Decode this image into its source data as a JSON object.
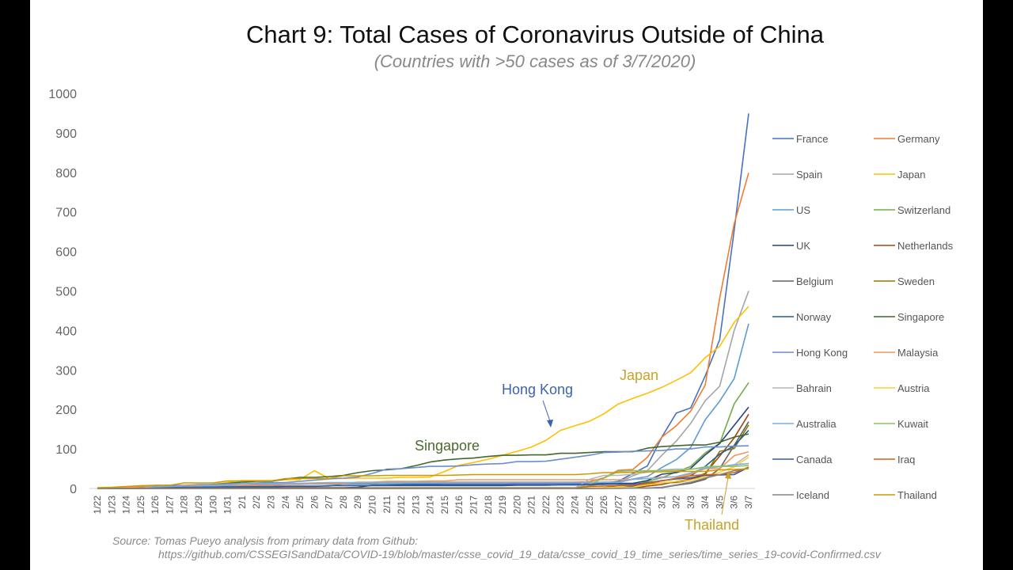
{
  "title": "Chart 9: Total Cases of Coronavirus Outside of China",
  "subtitle": "(Countries with >50 cases as of 3/7/2020)",
  "source_line1": "Source: Tomas Pueyo analysis from primary data from Github:",
  "source_line2": "https://github.com/CSSEGISandData/COVID-19/blob/master/csse_covid_19_data/csse_covid_19_time_series/time_series_19-covid-Confirmed.csv",
  "annotations": [
    {
      "text": "Hong Kong",
      "color": "#3E63AE",
      "arrow": true
    },
    {
      "text": "Japan",
      "color": "#C9A227",
      "arrow": false
    },
    {
      "text": "Singapore",
      "color": "#4A6B2E",
      "arrow": false
    },
    {
      "text": "Thailand",
      "color": "#C9A227",
      "arrow": true
    }
  ],
  "chart_data": {
    "type": "line",
    "title": "Chart 9: Total Cases of Coronavirus Outside of China",
    "subtitle": "(Countries with >50 cases as of 3/7/2020)",
    "xlabel": "",
    "ylabel": "",
    "ylim": [
      0,
      1000
    ],
    "yticks": [
      0,
      100,
      200,
      300,
      400,
      500,
      600,
      700,
      800,
      900,
      1000
    ],
    "grid": false,
    "legend": "right",
    "x": [
      "1/22",
      "1/23",
      "1/24",
      "1/25",
      "1/26",
      "1/27",
      "1/28",
      "1/29",
      "1/30",
      "1/31",
      "2/1",
      "2/2",
      "2/3",
      "2/4",
      "2/5",
      "2/6",
      "2/7",
      "2/8",
      "2/9",
      "2/10",
      "2/11",
      "2/12",
      "2/13",
      "2/14",
      "2/15",
      "2/16",
      "2/17",
      "2/18",
      "2/19",
      "2/20",
      "2/21",
      "2/22",
      "2/23",
      "2/24",
      "2/25",
      "2/26",
      "2/27",
      "2/28",
      "2/29",
      "3/1",
      "3/2",
      "3/3",
      "3/4",
      "3/5",
      "3/6",
      "3/7"
    ],
    "series": [
      {
        "name": "France",
        "color": "#4472C4",
        "values": [
          0,
          0,
          2,
          3,
          3,
          3,
          4,
          5,
          5,
          5,
          6,
          6,
          6,
          6,
          6,
          6,
          6,
          11,
          11,
          11,
          11,
          11,
          11,
          11,
          12,
          12,
          12,
          12,
          12,
          12,
          12,
          12,
          12,
          12,
          12,
          14,
          18,
          38,
          57,
          130,
          191,
          204,
          285,
          377,
          653,
          949
        ]
      },
      {
        "name": "Germany",
        "color": "#ED7D31",
        "values": [
          0,
          0,
          0,
          0,
          0,
          0,
          4,
          4,
          4,
          5,
          8,
          10,
          12,
          12,
          12,
          12,
          13,
          13,
          14,
          14,
          16,
          16,
          16,
          16,
          16,
          16,
          16,
          16,
          16,
          16,
          16,
          16,
          16,
          16,
          17,
          27,
          46,
          48,
          79,
          130,
          159,
          196,
          262,
          482,
          670,
          799
        ]
      },
      {
        "name": "Spain",
        "color": "#A5A5A5",
        "values": [
          0,
          0,
          0,
          0,
          0,
          0,
          0,
          0,
          0,
          0,
          1,
          1,
          1,
          1,
          1,
          1,
          1,
          1,
          2,
          2,
          2,
          2,
          2,
          2,
          2,
          2,
          2,
          2,
          2,
          2,
          2,
          2,
          2,
          2,
          6,
          13,
          15,
          32,
          45,
          84,
          120,
          165,
          222,
          259,
          400,
          500
        ]
      },
      {
        "name": "Japan",
        "color": "#FFC000",
        "values": [
          2,
          1,
          2,
          2,
          4,
          4,
          7,
          7,
          11,
          15,
          20,
          20,
          20,
          22,
          22,
          45,
          25,
          25,
          26,
          26,
          26,
          28,
          28,
          29,
          43,
          59,
          66,
          74,
          84,
          94,
          105,
          122,
          147,
          159,
          170,
          189,
          214,
          228,
          241,
          256,
          274,
          293,
          331,
          360,
          420,
          461
        ]
      },
      {
        "name": "US",
        "color": "#5B9BD5",
        "values": [
          1,
          1,
          2,
          2,
          5,
          5,
          5,
          5,
          5,
          6,
          8,
          8,
          11,
          11,
          11,
          11,
          11,
          11,
          11,
          11,
          12,
          12,
          13,
          13,
          13,
          13,
          13,
          13,
          13,
          15,
          15,
          15,
          15,
          15,
          15,
          16,
          16,
          24,
          30,
          53,
          73,
          104,
          174,
          221,
          278,
          417
        ]
      },
      {
        "name": "Switzerland",
        "color": "#70AD47",
        "values": [
          0,
          0,
          0,
          0,
          0,
          0,
          0,
          0,
          0,
          0,
          0,
          0,
          0,
          0,
          0,
          0,
          0,
          0,
          0,
          0,
          0,
          0,
          0,
          0,
          0,
          0,
          0,
          0,
          0,
          0,
          0,
          0,
          0,
          0,
          1,
          1,
          8,
          8,
          18,
          27,
          42,
          56,
          90,
          114,
          214,
          268
        ]
      },
      {
        "name": "UK",
        "color": "#264478",
        "values": [
          0,
          0,
          0,
          0,
          0,
          0,
          0,
          0,
          0,
          2,
          2,
          2,
          2,
          2,
          2,
          2,
          2,
          2,
          3,
          8,
          8,
          9,
          9,
          9,
          9,
          9,
          9,
          9,
          9,
          9,
          9,
          9,
          9,
          9,
          9,
          13,
          13,
          13,
          20,
          36,
          40,
          51,
          85,
          114,
          160,
          206
        ]
      },
      {
        "name": "Netherlands",
        "color": "#9E480E",
        "values": [
          0,
          0,
          0,
          0,
          0,
          0,
          0,
          0,
          0,
          0,
          0,
          0,
          0,
          0,
          0,
          0,
          0,
          0,
          0,
          0,
          0,
          0,
          0,
          0,
          0,
          0,
          0,
          0,
          0,
          0,
          0,
          0,
          0,
          0,
          0,
          0,
          1,
          1,
          6,
          10,
          18,
          24,
          38,
          82,
          128,
          188
        ]
      },
      {
        "name": "Belgium",
        "color": "#636363",
        "values": [
          0,
          0,
          0,
          0,
          0,
          0,
          0,
          0,
          0,
          0,
          0,
          0,
          0,
          1,
          1,
          1,
          1,
          1,
          1,
          1,
          1,
          1,
          1,
          1,
          1,
          1,
          1,
          1,
          1,
          1,
          1,
          1,
          1,
          1,
          1,
          1,
          1,
          1,
          1,
          2,
          8,
          13,
          23,
          50,
          109,
          169
        ]
      },
      {
        "name": "Sweden",
        "color": "#997300",
        "values": [
          0,
          0,
          0,
          0,
          0,
          0,
          0,
          0,
          0,
          1,
          1,
          1,
          1,
          1,
          1,
          1,
          1,
          1,
          1,
          1,
          1,
          1,
          1,
          1,
          1,
          1,
          1,
          1,
          1,
          1,
          1,
          1,
          1,
          1,
          1,
          2,
          7,
          7,
          12,
          14,
          15,
          21,
          35,
          94,
          101,
          161
        ]
      },
      {
        "name": "Norway",
        "color": "#255E91",
        "values": [
          0,
          0,
          0,
          0,
          0,
          0,
          0,
          0,
          0,
          0,
          0,
          0,
          0,
          0,
          0,
          0,
          0,
          0,
          0,
          0,
          0,
          0,
          0,
          0,
          0,
          0,
          0,
          0,
          0,
          0,
          0,
          0,
          0,
          0,
          0,
          1,
          1,
          6,
          15,
          19,
          25,
          32,
          56,
          87,
          108,
          147
        ]
      },
      {
        "name": "Singapore",
        "color": "#43682B",
        "values": [
          1,
          1,
          3,
          3,
          4,
          5,
          7,
          7,
          10,
          13,
          16,
          18,
          18,
          24,
          28,
          28,
          30,
          33,
          40,
          45,
          47,
          50,
          58,
          67,
          72,
          75,
          77,
          81,
          84,
          84,
          85,
          85,
          89,
          89,
          91,
          93,
          93,
          93,
          102,
          106,
          108,
          110,
          110,
          117,
          130,
          138
        ]
      },
      {
        "name": "Hong Kong",
        "color": "#698ED0",
        "values": [
          0,
          2,
          2,
          5,
          8,
          8,
          8,
          10,
          10,
          12,
          13,
          14,
          15,
          15,
          18,
          21,
          24,
          26,
          29,
          38,
          49,
          50,
          53,
          56,
          56,
          57,
          60,
          62,
          63,
          68,
          68,
          69,
          74,
          79,
          84,
          91,
          92,
          94,
          95,
          96,
          100,
          100,
          105,
          105,
          107,
          108
        ]
      },
      {
        "name": "Malaysia",
        "color": "#F1975A",
        "values": [
          0,
          0,
          3,
          4,
          4,
          4,
          7,
          8,
          8,
          8,
          8,
          8,
          8,
          10,
          10,
          12,
          12,
          12,
          16,
          16,
          18,
          18,
          18,
          19,
          19,
          22,
          22,
          22,
          22,
          22,
          22,
          22,
          22,
          22,
          22,
          22,
          22,
          23,
          25,
          29,
          29,
          36,
          50,
          50,
          83,
          93
        ]
      },
      {
        "name": "Bahrain",
        "color": "#B7B7B7",
        "values": [
          0,
          0,
          0,
          0,
          0,
          0,
          0,
          0,
          0,
          0,
          0,
          0,
          0,
          0,
          0,
          0,
          0,
          0,
          0,
          0,
          0,
          0,
          0,
          0,
          0,
          0,
          0,
          0,
          0,
          0,
          0,
          0,
          0,
          1,
          23,
          33,
          33,
          36,
          41,
          47,
          49,
          49,
          52,
          55,
          60,
          85
        ]
      },
      {
        "name": "Austria",
        "color": "#FFCD33",
        "values": [
          0,
          0,
          0,
          0,
          0,
          0,
          0,
          0,
          0,
          0,
          0,
          0,
          0,
          0,
          0,
          0,
          0,
          0,
          0,
          0,
          0,
          0,
          0,
          0,
          0,
          0,
          0,
          0,
          0,
          0,
          0,
          0,
          0,
          0,
          2,
          2,
          3,
          3,
          9,
          14,
          18,
          21,
          29,
          41,
          55,
          79
        ]
      },
      {
        "name": "Australia",
        "color": "#7CAFDD",
        "values": [
          0,
          0,
          0,
          0,
          4,
          5,
          5,
          6,
          9,
          9,
          12,
          12,
          12,
          13,
          13,
          14,
          15,
          15,
          15,
          15,
          15,
          15,
          15,
          15,
          15,
          15,
          15,
          15,
          15,
          15,
          15,
          15,
          15,
          15,
          15,
          15,
          15,
          23,
          25,
          27,
          30,
          39,
          52,
          55,
          60,
          63
        ]
      },
      {
        "name": "Kuwait",
        "color": "#8CC168",
        "values": [
          0,
          0,
          0,
          0,
          0,
          0,
          0,
          0,
          0,
          0,
          0,
          0,
          0,
          0,
          0,
          0,
          0,
          0,
          0,
          0,
          0,
          0,
          0,
          0,
          0,
          0,
          0,
          0,
          0,
          0,
          0,
          0,
          0,
          1,
          11,
          26,
          43,
          45,
          45,
          45,
          46,
          48,
          55,
          56,
          56,
          58
        ]
      },
      {
        "name": "Canada",
        "color": "#335AA1",
        "values": [
          0,
          0,
          0,
          0,
          1,
          2,
          3,
          3,
          3,
          4,
          4,
          4,
          4,
          5,
          5,
          5,
          7,
          7,
          7,
          7,
          7,
          7,
          7,
          7,
          7,
          7,
          7,
          7,
          7,
          8,
          8,
          8,
          9,
          9,
          10,
          10,
          11,
          11,
          14,
          20,
          24,
          27,
          33,
          34,
          35,
          54
        ]
      },
      {
        "name": "Iraq",
        "color": "#D26012",
        "values": [
          0,
          0,
          0,
          0,
          0,
          0,
          0,
          0,
          0,
          0,
          0,
          0,
          0,
          0,
          0,
          0,
          0,
          0,
          0,
          0,
          0,
          0,
          0,
          0,
          0,
          0,
          0,
          0,
          0,
          0,
          0,
          0,
          0,
          1,
          5,
          6,
          7,
          8,
          13,
          19,
          26,
          32,
          35,
          35,
          40,
          54
        ]
      },
      {
        "name": "Iceland",
        "color": "#848484",
        "values": [
          0,
          0,
          0,
          0,
          0,
          0,
          0,
          0,
          0,
          0,
          0,
          0,
          0,
          0,
          0,
          0,
          0,
          0,
          0,
          0,
          0,
          0,
          0,
          0,
          0,
          0,
          0,
          0,
          0,
          0,
          0,
          0,
          0,
          0,
          0,
          0,
          0,
          1,
          1,
          3,
          9,
          16,
          26,
          35,
          45,
          50
        ]
      },
      {
        "name": "Thailand",
        "color": "#CC9A00",
        "values": [
          2,
          3,
          5,
          7,
          8,
          8,
          14,
          14,
          14,
          19,
          19,
          19,
          19,
          25,
          25,
          25,
          25,
          32,
          32,
          32,
          33,
          33,
          33,
          33,
          33,
          34,
          35,
          35,
          35,
          35,
          35,
          35,
          35,
          35,
          37,
          40,
          40,
          41,
          42,
          42,
          43,
          43,
          43,
          47,
          48,
          50
        ]
      }
    ]
  }
}
